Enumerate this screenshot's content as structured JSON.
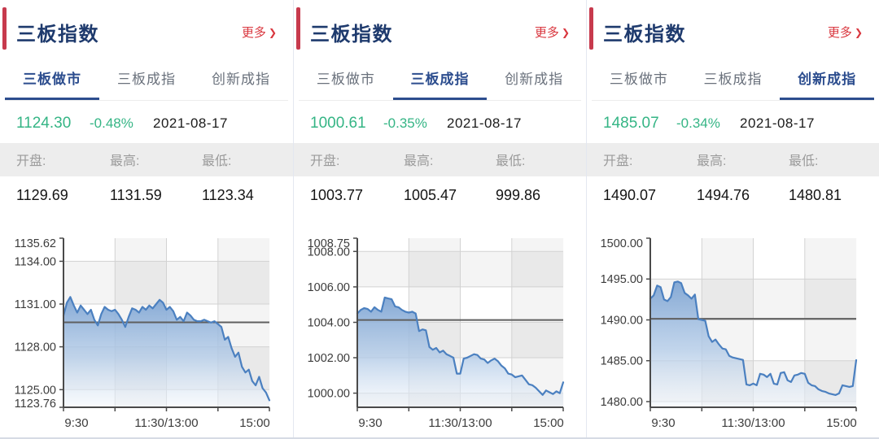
{
  "colors": {
    "title_navy": "#1e3a6d",
    "tab_active_blue": "#2c4d8e",
    "tab_inactive_gray": "#6a717c",
    "accent_red": "#d9363e",
    "accent_bar_red": "#c73a4d",
    "quote_green": "#35b585",
    "band_bg": "#ededed",
    "band_label_gray": "#9b9b9b",
    "line_blue": "#4b80c0",
    "fill_top": "#7fa5d3",
    "fill_mid": "#b3cbe7",
    "fill_bottom": "#f0f5fb",
    "ref_line_gray": "#5f5f5f",
    "axis_gray": "#4a4a4a",
    "grid_gray": "#d2d2d2"
  },
  "panels": [
    {
      "title": "三板指数",
      "more_label": "更多",
      "more_arrow": "❯",
      "tabs": [
        {
          "label": "三板做市",
          "active": true
        },
        {
          "label": "三板成指",
          "active": false
        },
        {
          "label": "创新成指",
          "active": false
        }
      ],
      "quote": {
        "price": "1124.30",
        "change": "-0.48%",
        "date": "2021-08-17"
      },
      "stats": {
        "open_label": "开盘:",
        "high_label": "最高:",
        "low_label": "最低:",
        "open": "1129.69",
        "high": "1131.59",
        "low": "1123.34"
      }
    },
    {
      "title": "三板指数",
      "more_label": "更多",
      "more_arrow": "❯",
      "tabs": [
        {
          "label": "三板做市",
          "active": false
        },
        {
          "label": "三板成指",
          "active": true
        },
        {
          "label": "创新成指",
          "active": false
        }
      ],
      "quote": {
        "price": "1000.61",
        "change": "-0.35%",
        "date": "2021-08-17"
      },
      "stats": {
        "open_label": "开盘:",
        "high_label": "最高:",
        "low_label": "最低:",
        "open": "1003.77",
        "high": "1005.47",
        "low": "999.86"
      }
    },
    {
      "title": "三板指数",
      "more_label": "更多",
      "more_arrow": "❯",
      "tabs": [
        {
          "label": "三板做市",
          "active": false
        },
        {
          "label": "三板成指",
          "active": false
        },
        {
          "label": "创新成指",
          "active": true
        }
      ],
      "quote": {
        "price": "1485.07",
        "change": "-0.34%",
        "date": "2021-08-17"
      },
      "stats": {
        "open_label": "开盘:",
        "high_label": "最高:",
        "low_label": "最低:",
        "open": "1490.07",
        "high": "1494.76",
        "low": "1480.81"
      }
    }
  ],
  "chart_data": [
    {
      "type": "area",
      "series_name": "三板做市",
      "x_tick_labels": [
        "9:30",
        "11:30/13:00",
        "15:00"
      ],
      "x_divisions": 4,
      "y_ticks": [
        {
          "value": 1135.62,
          "label": "1135.62"
        },
        {
          "value": 1134.0,
          "label": "1134.00"
        },
        {
          "value": 1131.0,
          "label": "1131.00"
        },
        {
          "value": 1128.0,
          "label": "1128.00"
        },
        {
          "value": 1125.0,
          "label": "1125.00"
        },
        {
          "value": 1123.76,
          "label": "1123.76"
        }
      ],
      "ylim": [
        1123.76,
        1135.62
      ],
      "prev_close": 1129.72,
      "open": 1129.69,
      "high": 1131.59,
      "low": 1123.34,
      "close": 1124.3,
      "values": [
        1130.2,
        1131.1,
        1131.5,
        1130.9,
        1130.4,
        1130.9,
        1130.6,
        1130.3,
        1130.6,
        1129.9,
        1129.5,
        1130.3,
        1130.8,
        1130.6,
        1130.5,
        1130.6,
        1130.3,
        1129.9,
        1129.4,
        1130.1,
        1130.7,
        1130.6,
        1130.4,
        1130.8,
        1130.6,
        1130.9,
        1130.7,
        1131.0,
        1131.3,
        1131.1,
        1130.6,
        1130.8,
        1130.5,
        1129.9,
        1130.1,
        1129.8,
        1130.4,
        1130.2,
        1129.9,
        1129.8,
        1129.8,
        1129.9,
        1129.8,
        1129.7,
        1129.8,
        1129.6,
        1129.4,
        1128.5,
        1128.7,
        1127.9,
        1127.3,
        1127.6,
        1126.6,
        1126.2,
        1126.4,
        1125.6,
        1125.3,
        1125.9,
        1125.1,
        1124.8,
        1124.25
      ]
    },
    {
      "type": "area",
      "series_name": "三板成指",
      "x_tick_labels": [
        "9:30",
        "11:30/13:00",
        "15:00"
      ],
      "x_divisions": 4,
      "y_ticks": [
        {
          "value": 1008.75,
          "label": "1008.75"
        },
        {
          "value": 1008.0,
          "label": "1008.00"
        },
        {
          "value": 1006.0,
          "label": "1006.00"
        },
        {
          "value": 1004.0,
          "label": "1004.00"
        },
        {
          "value": 1002.0,
          "label": "1002.00"
        },
        {
          "value": 1000.0,
          "label": "1000.00"
        }
      ],
      "ylim": [
        999.2,
        1008.75
      ],
      "prev_close": 1004.13,
      "open": 1003.77,
      "high": 1005.47,
      "low": 999.86,
      "close": 1000.61,
      "values": [
        1004.5,
        1004.7,
        1004.8,
        1004.75,
        1004.6,
        1004.85,
        1004.7,
        1004.6,
        1005.4,
        1005.35,
        1005.3,
        1004.9,
        1004.85,
        1004.7,
        1004.6,
        1004.55,
        1004.6,
        1004.5,
        1003.5,
        1003.6,
        1003.55,
        1002.6,
        1002.45,
        1002.55,
        1002.3,
        1002.4,
        1002.2,
        1002.1,
        1002.0,
        1001.1,
        1001.1,
        1001.95,
        1002.0,
        1002.1,
        1002.2,
        1002.15,
        1001.95,
        1001.9,
        1001.7,
        1001.85,
        1001.95,
        1001.8,
        1001.55,
        1001.4,
        1001.1,
        1001.05,
        1000.9,
        1000.95,
        1001.0,
        1000.75,
        1000.5,
        1000.45,
        1000.3,
        1000.1,
        999.9,
        1000.15,
        1000.05,
        999.95,
        1000.1,
        1000.0,
        1000.61
      ]
    },
    {
      "type": "area",
      "series_name": "创新成指",
      "x_tick_labels": [
        "9:30",
        "11:30/13:00",
        "15:00"
      ],
      "x_divisions": 4,
      "y_ticks": [
        {
          "value": 1500.0,
          "label": "1500.00"
        },
        {
          "value": 1495.0,
          "label": "1495.00"
        },
        {
          "value": 1490.0,
          "label": "1490.00"
        },
        {
          "value": 1485.0,
          "label": "1485.00"
        },
        {
          "value": 1480.0,
          "label": "1480.00"
        }
      ],
      "ylim": [
        1479.3,
        1500.0
      ],
      "prev_close": 1490.14,
      "open": 1490.07,
      "high": 1494.76,
      "low": 1480.81,
      "close": 1485.07,
      "values": [
        1492.6,
        1493.0,
        1494.2,
        1494.0,
        1492.5,
        1492.3,
        1492.8,
        1494.6,
        1494.7,
        1494.5,
        1493.3,
        1493.0,
        1492.6,
        1493.1,
        1490.1,
        1490.0,
        1489.9,
        1488.0,
        1487.3,
        1487.6,
        1487.0,
        1486.5,
        1486.4,
        1485.6,
        1485.4,
        1485.3,
        1485.2,
        1485.1,
        1482.1,
        1482.0,
        1482.2,
        1482.0,
        1483.4,
        1483.3,
        1483.0,
        1483.4,
        1482.2,
        1482.1,
        1483.5,
        1483.6,
        1482.6,
        1482.4,
        1483.2,
        1483.3,
        1483.5,
        1483.4,
        1482.3,
        1482.0,
        1481.9,
        1481.5,
        1481.3,
        1481.2,
        1481.0,
        1480.9,
        1480.8,
        1481.0,
        1482.0,
        1481.9,
        1481.8,
        1481.9,
        1485.07
      ]
    }
  ]
}
